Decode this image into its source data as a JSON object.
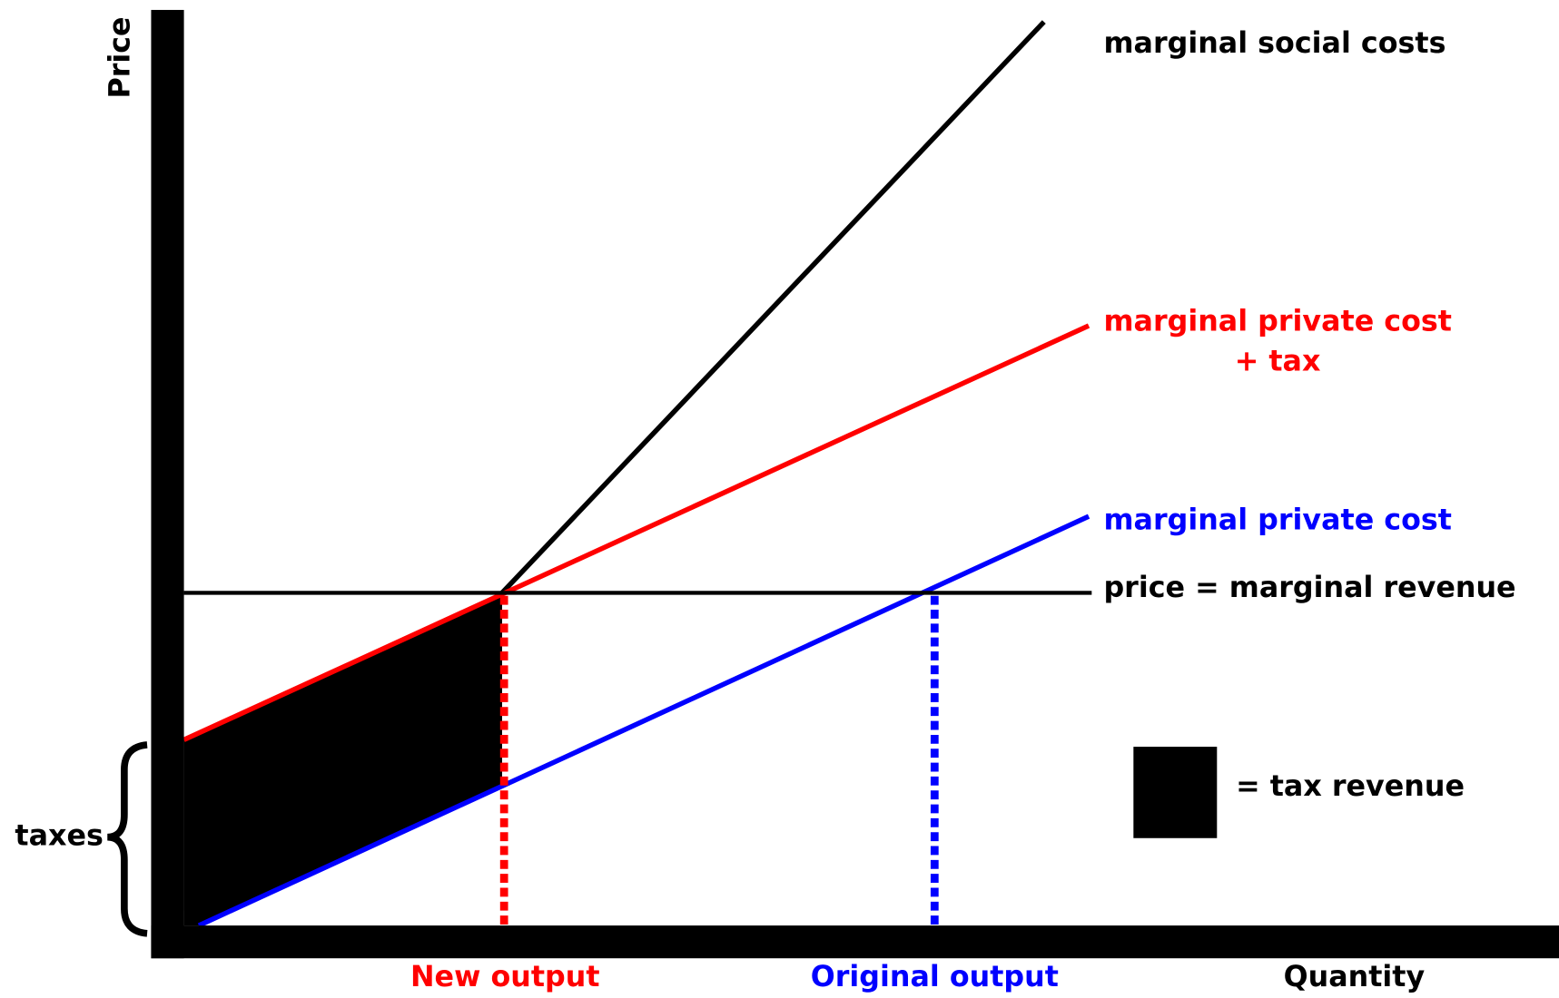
{
  "axes": {
    "y_label": "Price",
    "x_label": "Quantity"
  },
  "curves": {
    "social": "marginal social costs",
    "private_tax": [
      "marginal private cost",
      "+ tax"
    ],
    "private": "marginal private cost",
    "price": "price = marginal revenue"
  },
  "outputs": {
    "new": "New output",
    "original": "Original output"
  },
  "legend": "= tax revenue",
  "bracket": "taxes"
}
